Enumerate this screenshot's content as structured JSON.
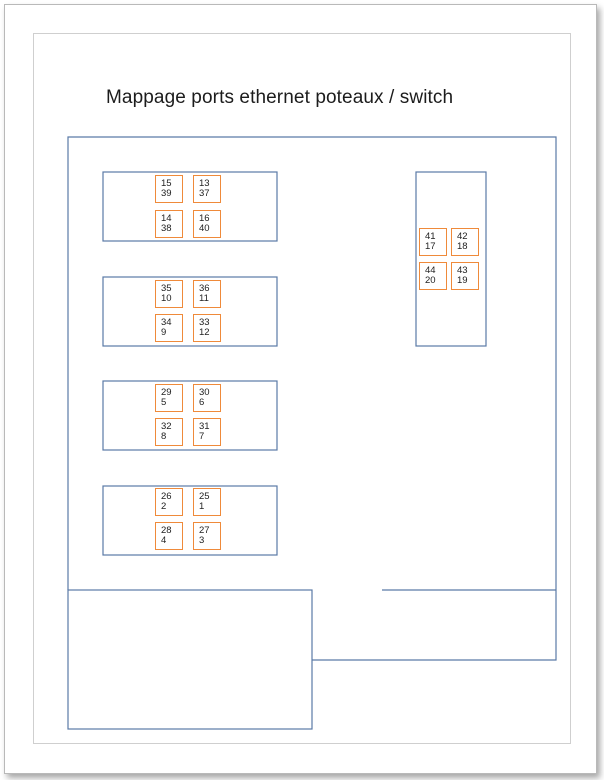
{
  "title": "Mappage ports ethernet poteaux / switch",
  "colors": {
    "outline": "#5b7aa6",
    "port_border": "#ef8a3a",
    "page_border": "#b9b9b9"
  },
  "poteaux": [
    {
      "ports": [
        {
          "top": "15",
          "bottom": "39"
        },
        {
          "top": "13",
          "bottom": "37"
        },
        {
          "top": "14",
          "bottom": "38"
        },
        {
          "top": "16",
          "bottom": "40"
        }
      ]
    },
    {
      "ports": [
        {
          "top": "35",
          "bottom": "10"
        },
        {
          "top": "36",
          "bottom": "11"
        },
        {
          "top": "34",
          "bottom": "9"
        },
        {
          "top": "33",
          "bottom": "12"
        }
      ]
    },
    {
      "ports": [
        {
          "top": "29",
          "bottom": "5"
        },
        {
          "top": "30",
          "bottom": "6"
        },
        {
          "top": "32",
          "bottom": "8"
        },
        {
          "top": "31",
          "bottom": "7"
        }
      ]
    },
    {
      "ports": [
        {
          "top": "26",
          "bottom": "2"
        },
        {
          "top": "25",
          "bottom": "1"
        },
        {
          "top": "28",
          "bottom": "4"
        },
        {
          "top": "27",
          "bottom": "3"
        }
      ]
    },
    {
      "ports": [
        {
          "top": "41",
          "bottom": "17"
        },
        {
          "top": "42",
          "bottom": "18"
        },
        {
          "top": "44",
          "bottom": "20"
        },
        {
          "top": "43",
          "bottom": "19"
        }
      ]
    }
  ]
}
